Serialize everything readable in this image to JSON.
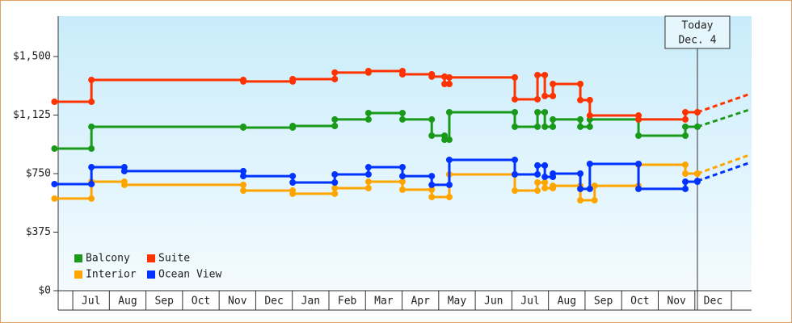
{
  "chart_data": {
    "type": "step",
    "xlim": [
      -0.5,
      18.5
    ],
    "ylim": [
      0,
      1760
    ],
    "yticks": [
      {
        "value": 0,
        "label": "$0"
      },
      {
        "value": 375,
        "label": "$375"
      },
      {
        "value": 750,
        "label": "$750"
      },
      {
        "value": 1125,
        "label": "$1,125"
      },
      {
        "value": 1500,
        "label": "$1,500"
      }
    ],
    "xticks": [
      {
        "value": 0.5,
        "label": "Jul"
      },
      {
        "value": 1.5,
        "label": "Aug"
      },
      {
        "value": 2.5,
        "label": "Sep"
      },
      {
        "value": 3.5,
        "label": "Oct"
      },
      {
        "value": 4.5,
        "label": "Nov"
      },
      {
        "value": 5.5,
        "label": "Dec"
      },
      {
        "value": 6.5,
        "label": "Jan"
      },
      {
        "value": 7.5,
        "label": "Feb"
      },
      {
        "value": 8.5,
        "label": "Mar"
      },
      {
        "value": 9.5,
        "label": "Apr"
      },
      {
        "value": 10.5,
        "label": "May"
      },
      {
        "value": 11.5,
        "label": "Jun"
      },
      {
        "value": 12.5,
        "label": "Jul"
      },
      {
        "value": 13.5,
        "label": "Aug"
      },
      {
        "value": 14.5,
        "label": "Sep"
      },
      {
        "value": 15.5,
        "label": "Oct"
      },
      {
        "value": 16.5,
        "label": "Nov"
      },
      {
        "value": 17.5,
        "label": "Dec"
      }
    ],
    "today": {
      "x": 17.07,
      "label": "Today",
      "date": "Dec. 4"
    },
    "legend": "lower left",
    "forecast_x": [
      17.07,
      18.5
    ],
    "series": [
      {
        "name": "Balcony",
        "color": "#1a9a1a",
        "x": [
          -0.5,
          0.51,
          4.66,
          6.01,
          7.16,
          8.08,
          9.01,
          9.81,
          10.16,
          10.29,
          12.08,
          12.7,
          12.9,
          13.12,
          13.87,
          14.13,
          15.46,
          16.74,
          17.07
        ],
        "values": [
          910,
          1050,
          1045,
          1055,
          1097,
          1138,
          1097,
          993,
          967,
          1143,
          1050,
          1143,
          1050,
          1097,
          1050,
          1097,
          993,
          1050,
          1050
        ],
        "forecast": [
          1050,
          1160
        ]
      },
      {
        "name": "Suite",
        "color": "#ff3300",
        "x": [
          -0.5,
          0.51,
          4.66,
          6.01,
          7.16,
          8.08,
          9.01,
          9.81,
          10.16,
          10.29,
          12.08,
          12.7,
          12.9,
          13.12,
          13.87,
          14.13,
          15.46,
          16.74,
          17.07
        ],
        "values": [
          1210,
          1350,
          1340,
          1355,
          1397,
          1407,
          1386,
          1371,
          1324,
          1366,
          1226,
          1381,
          1247,
          1324,
          1221,
          1122,
          1097,
          1143,
          1143
        ],
        "forecast": [
          1143,
          1260
        ]
      },
      {
        "name": "Interior",
        "color": "#ffa500",
        "x": [
          -0.5,
          0.51,
          1.41,
          4.66,
          6.01,
          7.16,
          8.08,
          9.01,
          9.81,
          10.29,
          12.08,
          12.7,
          12.9,
          13.12,
          13.87,
          14.26,
          15.46,
          16.74,
          17.07
        ],
        "values": [
          590,
          698,
          678,
          641,
          621,
          657,
          698,
          647,
          600,
          745,
          641,
          693,
          657,
          672,
          579,
          672,
          807,
          750,
          750
        ],
        "forecast": [
          750,
          870
        ]
      },
      {
        "name": "Ocean View",
        "color": "#0033ff",
        "x": [
          -0.5,
          0.51,
          1.41,
          4.66,
          6.01,
          7.16,
          8.08,
          9.01,
          9.81,
          10.29,
          12.08,
          12.7,
          12.9,
          13.12,
          13.87,
          14.13,
          15.46,
          16.74,
          17.07
        ],
        "values": [
          683,
          791,
          766,
          734,
          693,
          745,
          791,
          734,
          678,
          838,
          745,
          802,
          729,
          750,
          652,
          812,
          652,
          698,
          703
        ],
        "forecast": [
          703,
          820
        ]
      }
    ]
  }
}
